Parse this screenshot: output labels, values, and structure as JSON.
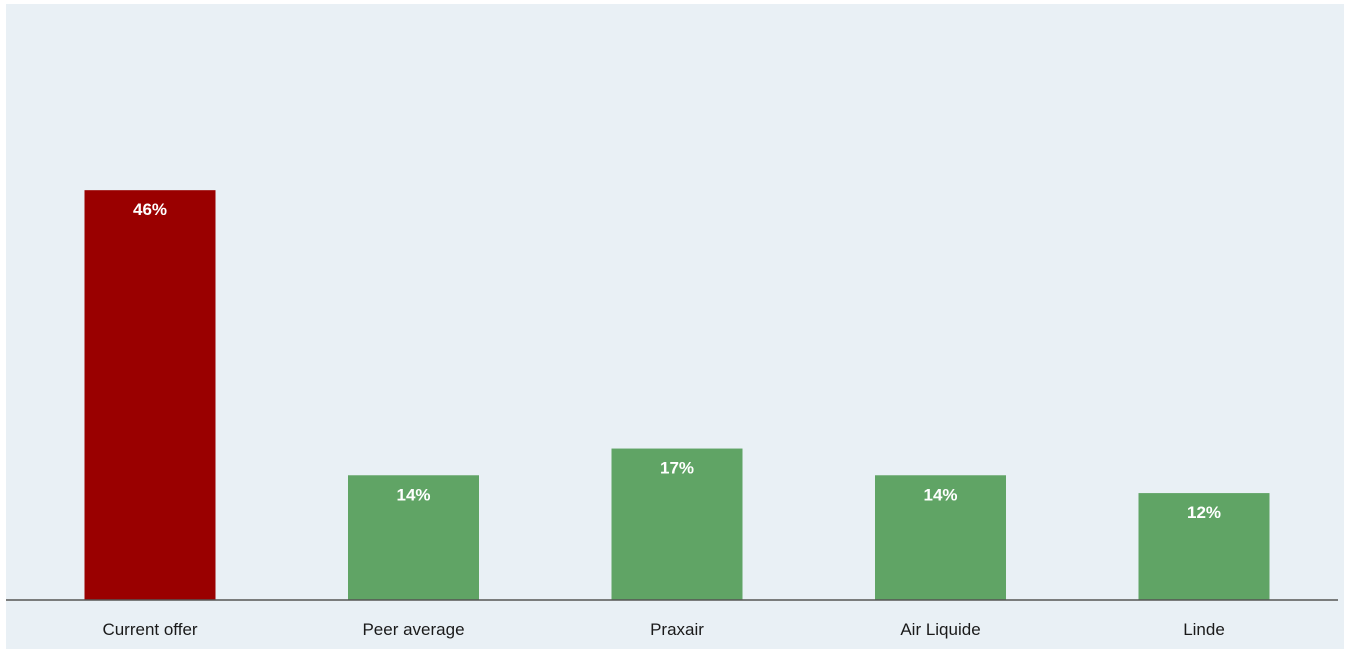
{
  "chart_data": {
    "type": "bar",
    "title": "",
    "xlabel": "",
    "ylabel": "",
    "categories": [
      "Current offer",
      "Peer average",
      "Praxair",
      "Air Liquide",
      "Linde"
    ],
    "values": [
      46,
      14,
      17,
      14,
      12
    ],
    "labels": [
      "46%",
      "14%",
      "17%",
      "14%",
      "12%"
    ],
    "unit": "%",
    "ylim": [
      0,
      66
    ],
    "grid": false,
    "legend": "none",
    "colors": [
      "#9a0000",
      "#60a465",
      "#60a465",
      "#60a465",
      "#60a465"
    ],
    "background": "#e9f0f5",
    "axis_color": "#555555"
  }
}
